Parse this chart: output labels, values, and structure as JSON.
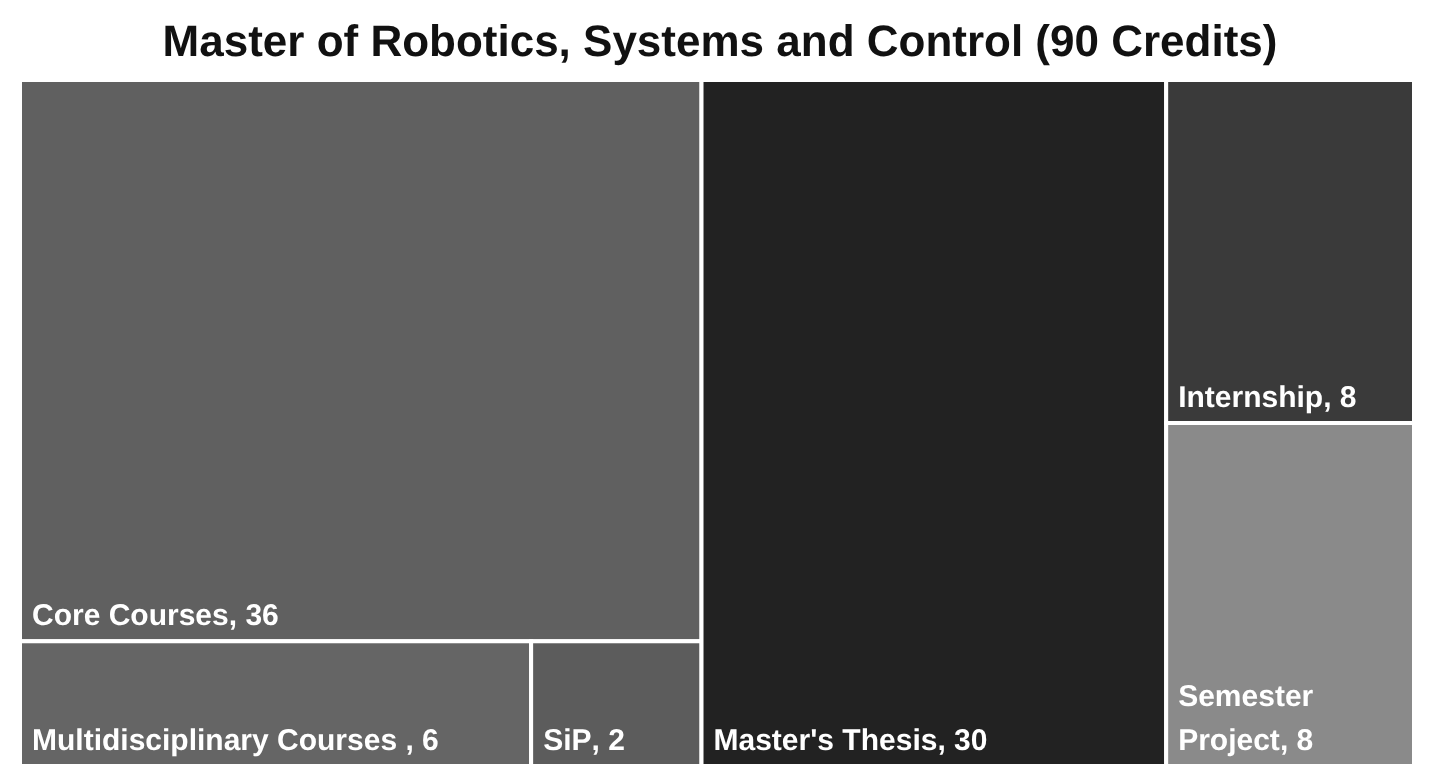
{
  "chart_data": {
    "type": "other",
    "title": "Master of Robotics, Systems and Control (90 Credits)",
    "categories": [
      "Core Courses",
      "Multidisciplinary Courses ",
      "SiP",
      "Master's Thesis",
      "Internship",
      "Semester Project"
    ],
    "values": [
      36,
      6,
      2,
      30,
      8,
      8
    ],
    "colors": [
      "#606060",
      "#656565",
      "#5c5c5c",
      "#222222",
      "#3a3a3a",
      "#8a8a8a"
    ],
    "value_labels": [
      ", 36",
      ", 6",
      ", 2",
      ", 30",
      ", 8",
      ", 8"
    ]
  }
}
